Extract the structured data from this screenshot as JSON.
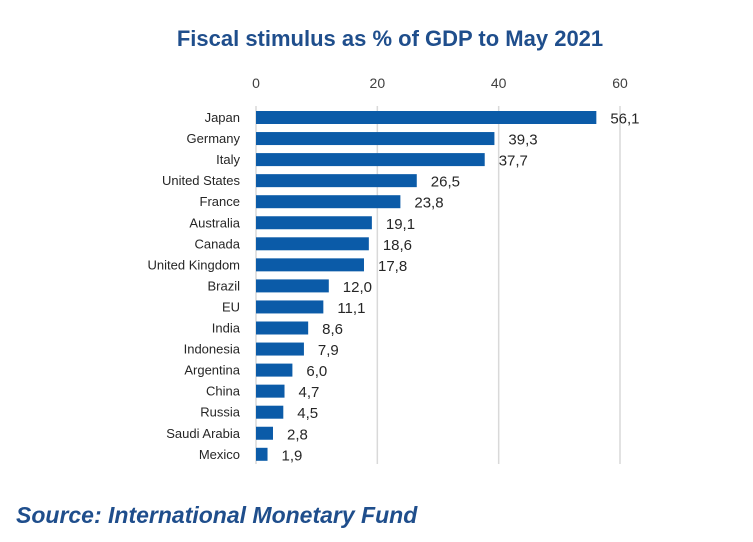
{
  "chart_data": {
    "type": "bar",
    "orientation": "horizontal",
    "title": "Fiscal stimulus as % of GDP to May 2021",
    "categories": [
      "Japan",
      "Germany",
      "Italy",
      "United States",
      "France",
      "Australia",
      "Canada",
      "United Kingdom",
      "Brazil",
      "EU",
      "India",
      "Indonesia",
      "Argentina",
      "China",
      "Russia",
      "Saudi Arabia",
      "Mexico"
    ],
    "values": [
      56.1,
      39.3,
      37.7,
      26.5,
      23.8,
      19.1,
      18.6,
      17.8,
      12.0,
      11.1,
      8.6,
      7.9,
      6.0,
      4.7,
      4.5,
      2.8,
      1.9
    ],
    "value_labels": [
      "56,1",
      "39,3",
      "37,7",
      "26,5",
      "23,8",
      "19,1",
      "18,6",
      "17,8",
      "12,0",
      "11,1",
      "8,6",
      "7,9",
      "6,0",
      "4,7",
      "4,5",
      "2,8",
      "1,9"
    ],
    "xlim": [
      0,
      60
    ],
    "x_ticks": [
      0,
      20,
      40,
      60
    ],
    "x_tick_labels": [
      "0",
      "20",
      "40",
      "60"
    ],
    "x_axis_position": "top",
    "grid": true,
    "bar_color": "#0b5ba8",
    "xlabel": "",
    "ylabel": ""
  },
  "source": "Source: International Monetary Fund",
  "colors": {
    "title": "#1f4e8c",
    "source": "#1f4e8c",
    "grid": "#d9d9d9"
  }
}
